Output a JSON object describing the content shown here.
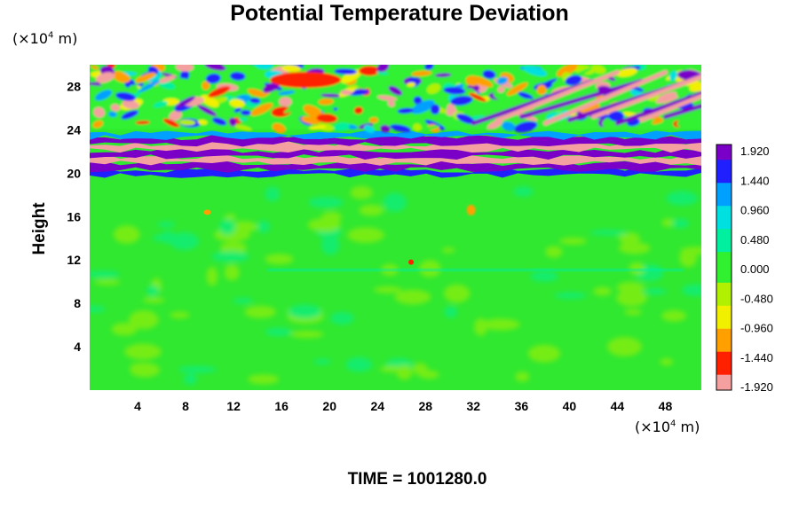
{
  "title": "Potential Temperature Deviation",
  "y_unit": {
    "prefix": "(×10",
    "exp": "4",
    "suffix": " m)"
  },
  "x_unit": {
    "prefix": "(×10",
    "exp": "4",
    "suffix": " m)"
  },
  "time_label": "TIME = 1001280.0",
  "colors": {
    "background_field": "#30e830",
    "palette": [
      "#7a00c8",
      "#2020ff",
      "#00a0ff",
      "#00e0e0",
      "#00f0a0",
      "#30f030",
      "#b0f000",
      "#f0f000",
      "#ffa000",
      "#ff2000",
      "#f5a0a0"
    ]
  },
  "chart_data": {
    "type": "heatmap",
    "title": "Potential Temperature Deviation",
    "xlabel": "",
    "ylabel": "Height",
    "x_ticks": [
      4,
      8,
      12,
      16,
      20,
      24,
      28,
      32,
      36,
      40,
      44,
      48
    ],
    "y_ticks": [
      4,
      8,
      12,
      16,
      20,
      24,
      28
    ],
    "xlim": [
      0,
      51
    ],
    "ylim": [
      0,
      30
    ],
    "colorbar": {
      "labels": [
        "1.920",
        "1.440",
        "0.960",
        "0.480",
        "0.000",
        "-0.480",
        "-0.960",
        "-1.440",
        "-1.920"
      ],
      "values": [
        1.92,
        1.44,
        0.96,
        0.48,
        0.0,
        -0.48,
        -0.96,
        -1.44,
        -1.92
      ]
    },
    "field_description_layers": [
      {
        "y_range": [
          0,
          19.5
        ],
        "value_range": [
          -0.48,
          0.48
        ]
      },
      {
        "y_range": [
          19.5,
          24
        ],
        "value_range": [
          -1.92,
          1.92
        ]
      },
      {
        "y_range": [
          24,
          30
        ],
        "value_range": [
          -1.92,
          1.92
        ]
      }
    ]
  }
}
